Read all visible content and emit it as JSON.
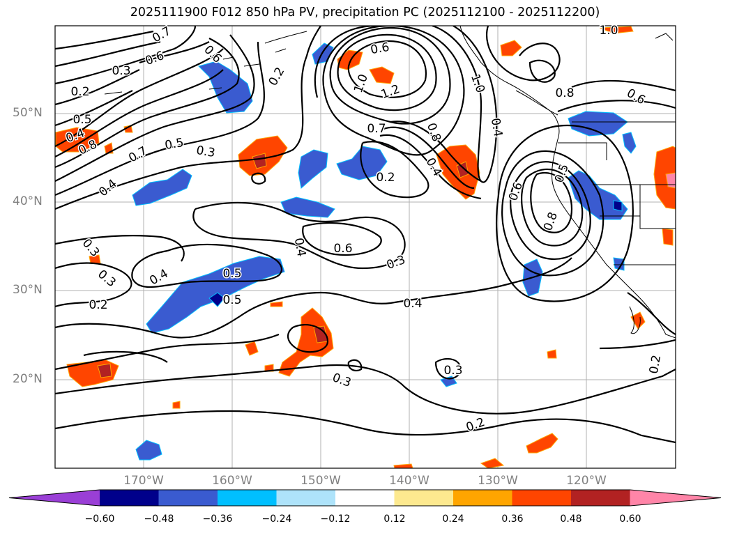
{
  "title": "2025111900 F012 850 hPa PV, precipitation PC (2025112100 - 2025112200)",
  "map": {
    "lat_ticks": [
      "50°N",
      "40°N",
      "30°N",
      "20°N"
    ],
    "lon_ticks": [
      "170°W",
      "160°W",
      "150°W",
      "140°W",
      "130°W",
      "120°W"
    ],
    "contour_labels": [
      "0.7",
      "0.6",
      "0.6",
      "0.3",
      "0.2",
      "0.5",
      "0.4",
      "0.8",
      "0.7",
      "0.5",
      "0.4",
      "0.3",
      "0.2",
      "0.6",
      "1.0",
      "1.2",
      "0.7",
      "0.8",
      "0.4",
      "0.4",
      "0.2",
      "1.0",
      "0.8",
      "0.6",
      "1.0",
      "0.6",
      "0.8",
      "0.5",
      "0.5",
      "0.6",
      "0.3",
      "0.4",
      "0.4",
      "0.3",
      "0.2",
      "0.5",
      "0.4",
      "0.3",
      "0.3",
      "0.2",
      "0.2",
      "0.3"
    ],
    "colors": {
      "land_border": "#000000",
      "grid": "#b0b0b0"
    }
  },
  "colorbar": {
    "ticks": [
      "−0.60",
      "−0.48",
      "−0.36",
      "−0.24",
      "−0.12",
      "0.12",
      "0.24",
      "0.36",
      "0.48",
      "0.60"
    ],
    "colors": [
      "#9a3fd6",
      "#00008b",
      "#3a5bd0",
      "#00bfff",
      "#aee3fa",
      "#ffffff",
      "#fde98f",
      "#ffa500",
      "#ff4500",
      "#b22222",
      "#ff85a8"
    ]
  }
}
